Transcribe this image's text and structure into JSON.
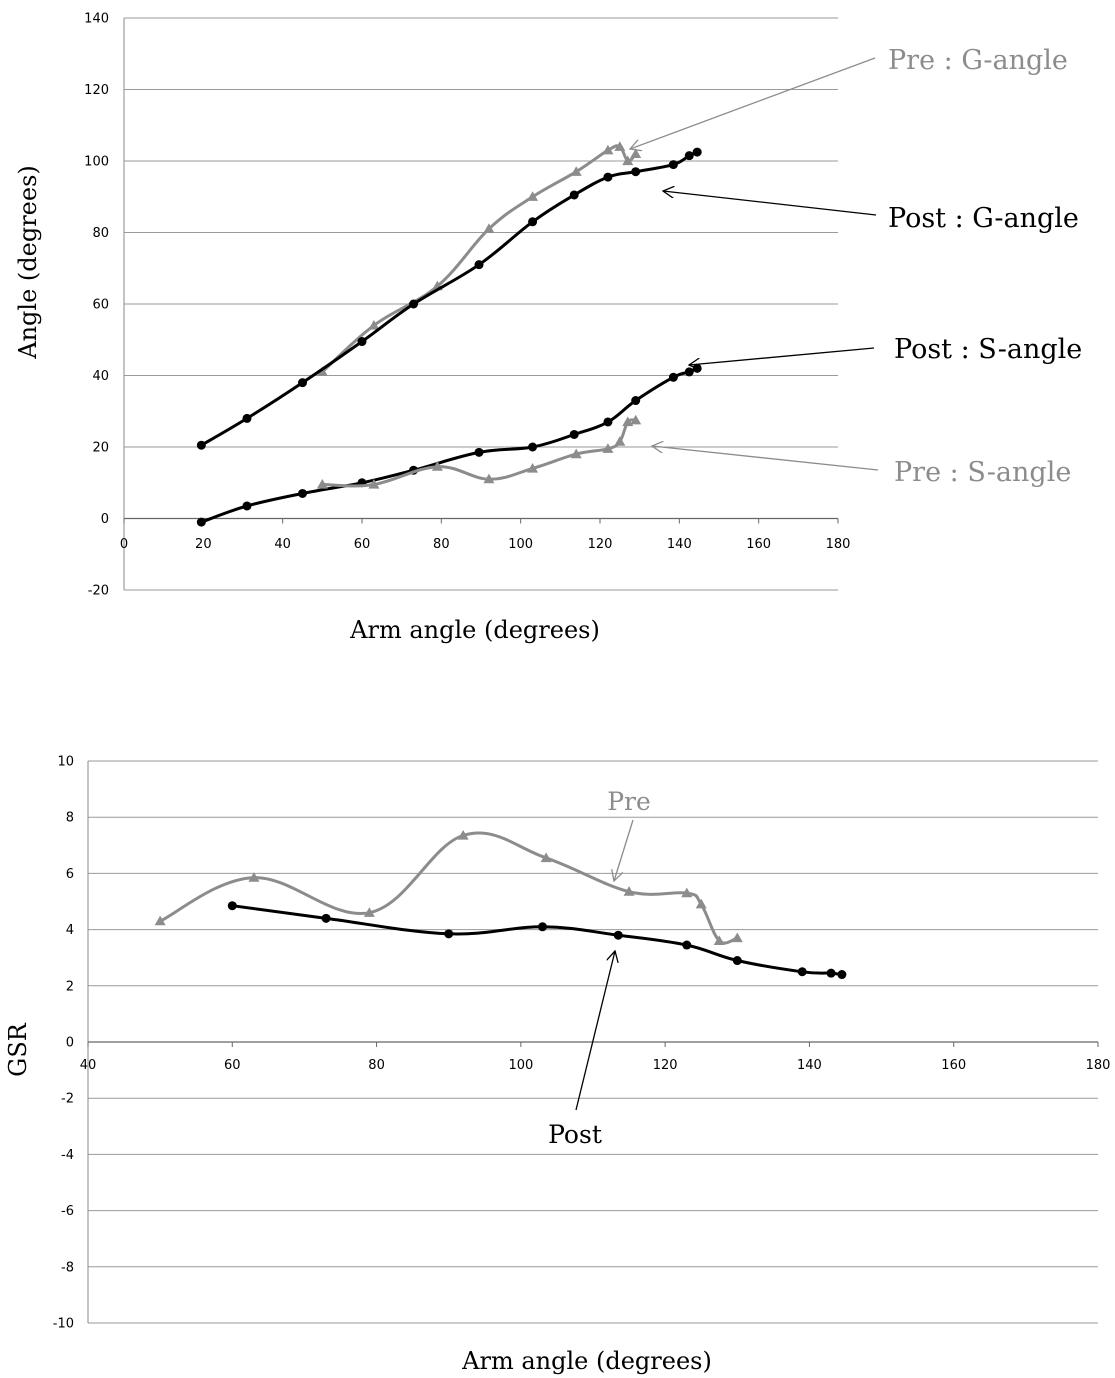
{
  "chart_data": [
    {
      "type": "line",
      "xlabel": "Arm angle (degrees)",
      "ylabel": "Angle (degrees)",
      "xlim": [
        0,
        180
      ],
      "ylim": [
        -20,
        140
      ],
      "xticks": [
        "0",
        "20",
        "40",
        "60",
        "80",
        "100",
        "120",
        "140",
        "160",
        "180"
      ],
      "yticks": [
        "-20",
        "0",
        "20",
        "40",
        "60",
        "80",
        "100",
        "120",
        "140"
      ],
      "grid": true,
      "series": [
        {
          "name": "Pre : G-angle",
          "color": "#8c8c8c",
          "marker": "triangle",
          "x": [
            50,
            63,
            79,
            92,
            103,
            114,
            122,
            125,
            127,
            129
          ],
          "y": [
            41,
            54,
            65,
            81,
            90,
            97,
            103,
            104,
            100,
            102
          ]
        },
        {
          "name": "Post : G-angle",
          "color": "#000000",
          "marker": "circle",
          "x": [
            19.5,
            31,
            45,
            60,
            73,
            89.5,
            103,
            113.5,
            122,
            129,
            138.5,
            142.5,
            144.5
          ],
          "y": [
            20.5,
            28,
            38,
            49.5,
            60,
            71,
            83,
            90.5,
            95.5,
            97,
            99,
            101.5,
            102.5
          ]
        },
        {
          "name": "Post : S-angle",
          "color": "#000000",
          "marker": "circle",
          "x": [
            19.5,
            31,
            45,
            60,
            73,
            89.5,
            103,
            113.5,
            122,
            129,
            138.5,
            142.5,
            144.5
          ],
          "y": [
            -1,
            3.5,
            7,
            10,
            13.5,
            18.5,
            20,
            23.5,
            27,
            33,
            39.5,
            41,
            42
          ]
        },
        {
          "name": "Pre : S-angle",
          "color": "#8c8c8c",
          "marker": "triangle",
          "x": [
            50,
            63,
            79,
            92,
            103,
            114,
            122,
            125,
            127,
            129
          ],
          "y": [
            9.5,
            9.5,
            14.5,
            11,
            14,
            18,
            19.5,
            21.5,
            27,
            27.5
          ]
        }
      ],
      "annotations": {
        "pre_g": "Pre : G-angle",
        "post_g": "Post : G-angle",
        "post_s": "Post : S-angle",
        "pre_s": "Pre : S-angle"
      }
    },
    {
      "type": "line",
      "xlabel": "Arm angle (degrees)",
      "ylabel": "GSR",
      "xlim": [
        40,
        180
      ],
      "ylim": [
        -10,
        10
      ],
      "xticks": [
        "40",
        "60",
        "80",
        "100",
        "120",
        "140",
        "160",
        "180"
      ],
      "yticks": [
        "-10",
        "-8",
        "-6",
        "-4",
        "-2",
        "0",
        "2",
        "4",
        "6",
        "8",
        "10"
      ],
      "grid": true,
      "series": [
        {
          "name": "Pre",
          "color": "#8c8c8c",
          "marker": "triangle",
          "x": [
            50,
            63,
            79,
            92,
            103.5,
            115,
            123,
            125,
            127.5,
            130
          ],
          "y": [
            4.3,
            5.85,
            4.6,
            7.35,
            6.55,
            5.35,
            5.3,
            4.9,
            3.6,
            3.7
          ]
        },
        {
          "name": "Post",
          "color": "#000000",
          "marker": "circle",
          "x": [
            60,
            73,
            90,
            103,
            113.5,
            123,
            130,
            139,
            143,
            144.5
          ],
          "y": [
            4.85,
            4.4,
            3.85,
            4.1,
            3.8,
            3.45,
            2.9,
            2.5,
            2.45,
            2.4
          ]
        }
      ],
      "annotations": {
        "pre": "Pre",
        "post": "Post"
      }
    }
  ]
}
